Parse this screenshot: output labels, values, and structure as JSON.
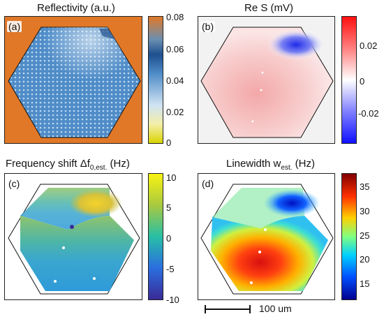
{
  "panels": [
    {
      "id": "a",
      "label": "(a)",
      "title": "Reflectivity (a.u.)",
      "ticks": [
        "0.08",
        "0.06",
        "0.04",
        "0.02",
        "0"
      ]
    },
    {
      "id": "b",
      "label": "(b)",
      "title": "Re S (mV)",
      "ticks": [
        "0.02",
        "0",
        "-0.02"
      ]
    },
    {
      "id": "c",
      "label": "(c)",
      "title_main": "Frequency shift Δf",
      "title_sub": "0,est.",
      "title_end": " (Hz)",
      "ticks": [
        "10",
        "5",
        "0",
        "-5",
        "-10"
      ]
    },
    {
      "id": "d",
      "label": "(d)",
      "title_main": "Linewidth w",
      "title_sub": "est.",
      "title_end": " (Hz)",
      "ticks": [
        "35",
        "30",
        "25",
        "20",
        "15"
      ]
    }
  ],
  "scalebar": {
    "label": "100 um"
  },
  "colors": {
    "reflect_bg": "#e07828",
    "reflect_hex": "#4f8cc8",
    "bwr_low": "#1010ff",
    "bwr_mid": "#ffffff",
    "bwr_high": "#ff1010",
    "parula_low": "#3a2a96",
    "parula_mid": "#27bfa5",
    "parula_high": "#f9f312",
    "jet_low": "#00008f",
    "jet_high": "#800000"
  }
}
